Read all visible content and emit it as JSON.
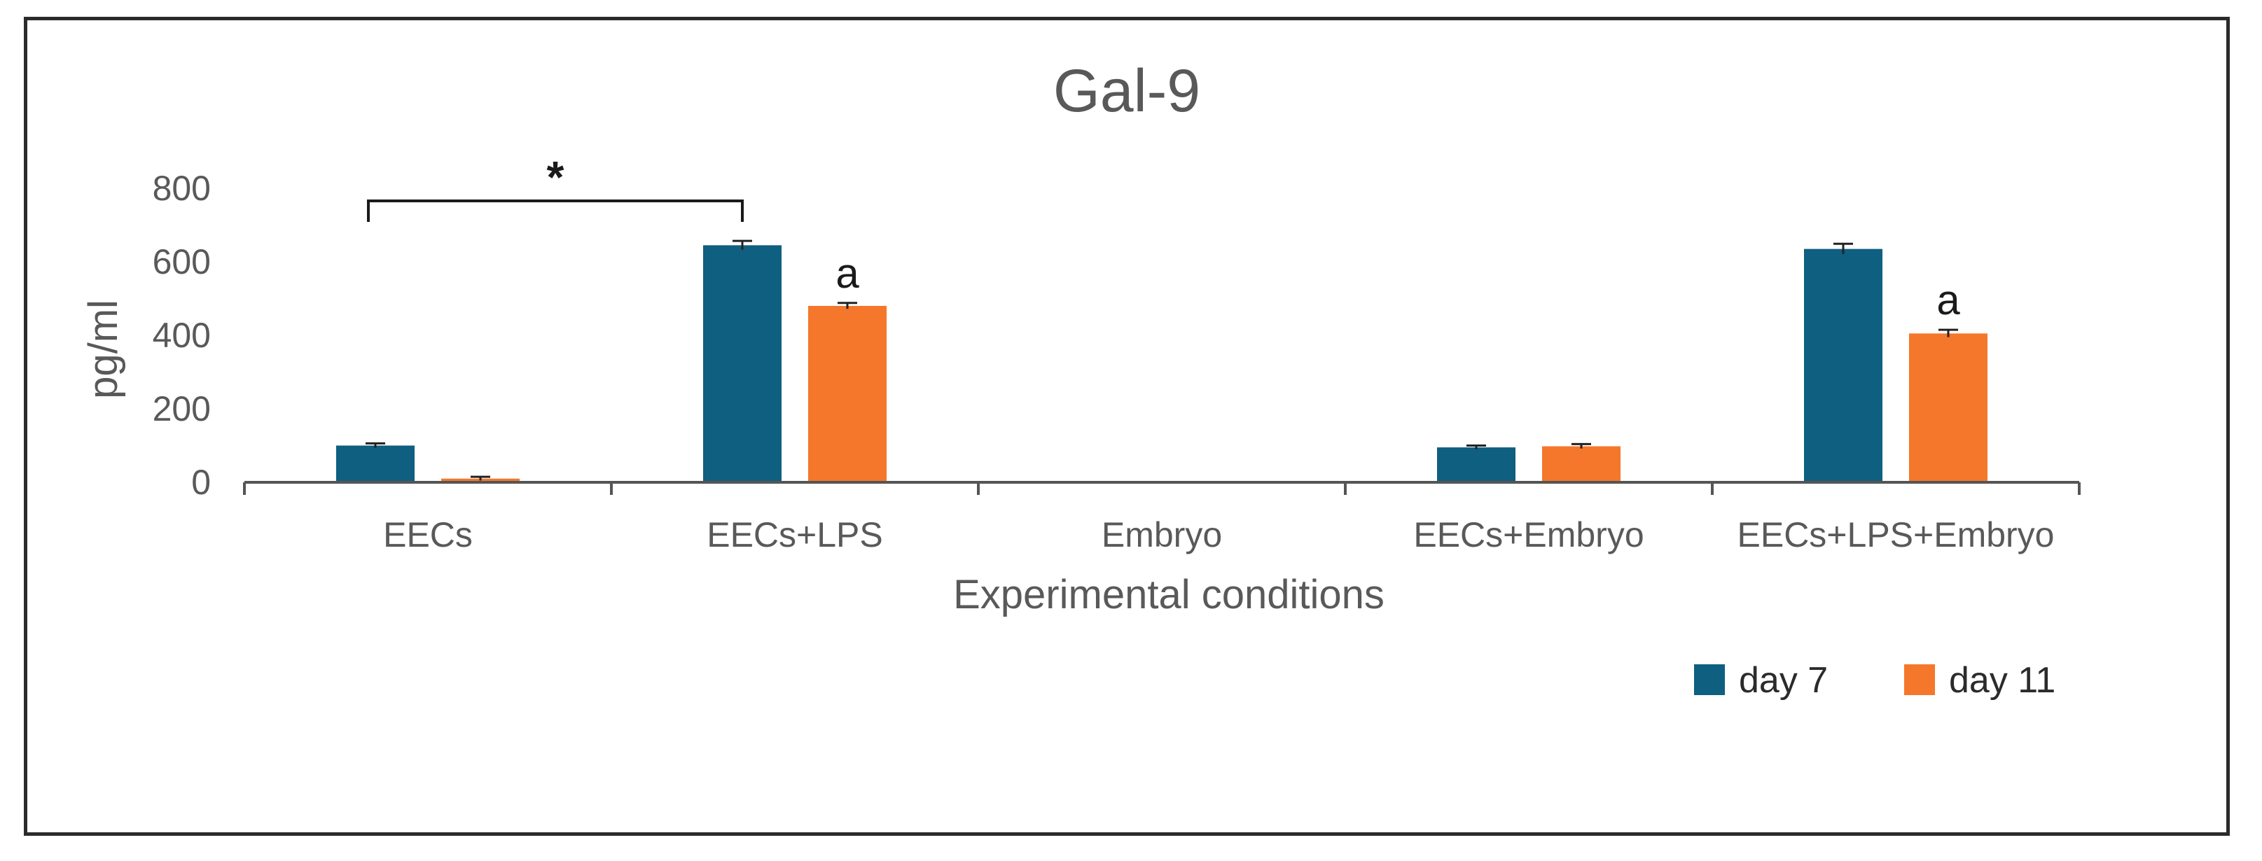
{
  "chart_data": {
    "type": "bar",
    "title": "Gal-9",
    "xlabel": "Experimental conditions",
    "ylabel": "pg/ml",
    "ylim": [
      0,
      800
    ],
    "yticks": [
      0,
      200,
      400,
      600,
      800
    ],
    "ytick_labels": [
      "0",
      "200",
      "400",
      "600",
      "800"
    ],
    "categories": [
      "EECs",
      "EECs+LPS",
      "Embryo",
      "EECs+Embryo",
      "EECs+LPS+Embryo"
    ],
    "series": [
      {
        "name": "day 7",
        "color": "#0e5f80",
        "values": [
          100,
          645,
          0,
          95,
          635
        ],
        "errors": [
          6,
          12,
          0,
          5,
          14
        ]
      },
      {
        "name": "day 11",
        "color": "#f5772b",
        "values": [
          10,
          480,
          0,
          98,
          405
        ],
        "errors": [
          5,
          8,
          0,
          6,
          10
        ]
      }
    ],
    "legend_position": "bottom-right",
    "annotations": [
      {
        "text": "a",
        "category": "EECs+LPS",
        "series": "day 11"
      },
      {
        "text": "a",
        "category": "EECs+LPS+Embryo",
        "series": "day 11"
      }
    ],
    "significance": {
      "text": "*",
      "from_category": "EECs",
      "to_category": "EECs+LPS"
    }
  }
}
